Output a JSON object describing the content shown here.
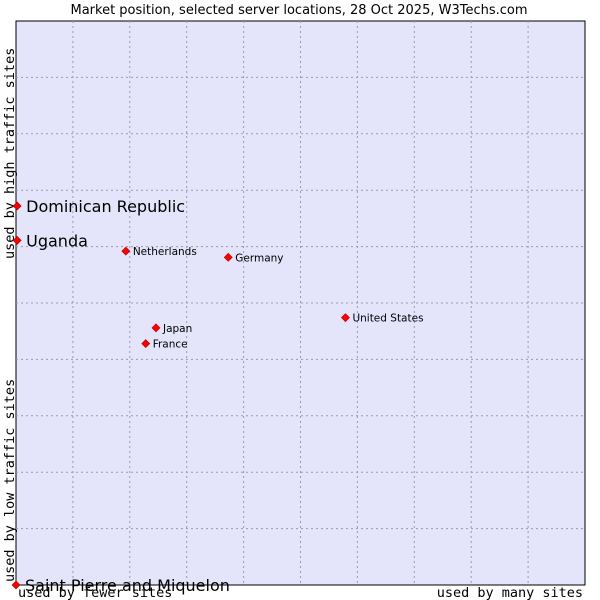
{
  "chart_data": {
    "type": "scatter",
    "title": "Market position, selected server locations, 28 Oct 2025, W3Techs.com",
    "x_axis": {
      "label_low": "used by fewer sites",
      "label_high": "used by many sites",
      "range": [
        0,
        100
      ]
    },
    "y_axis": {
      "label_low": "used by low traffic sites",
      "label_high": "used by high traffic sites",
      "range": [
        0,
        100
      ]
    },
    "grid": true,
    "point_color": "#ff0000",
    "points": [
      {
        "name": "Dominican Republic",
        "x": 0.2,
        "y": 67.2,
        "emphasis": true
      },
      {
        "name": "Uganda",
        "x": 0.2,
        "y": 61.1,
        "emphasis": true
      },
      {
        "name": "Netherlands",
        "x": 19.3,
        "y": 59.2,
        "emphasis": false
      },
      {
        "name": "Germany",
        "x": 37.3,
        "y": 58.1,
        "emphasis": false
      },
      {
        "name": "United States",
        "x": 57.9,
        "y": 47.4,
        "emphasis": false
      },
      {
        "name": "Japan",
        "x": 24.6,
        "y": 45.6,
        "emphasis": false
      },
      {
        "name": "France",
        "x": 22.8,
        "y": 42.8,
        "emphasis": false
      },
      {
        "name": "Saint Pierre and Miquelon",
        "x": 0.0,
        "y": 0.0,
        "emphasis": true
      }
    ]
  }
}
